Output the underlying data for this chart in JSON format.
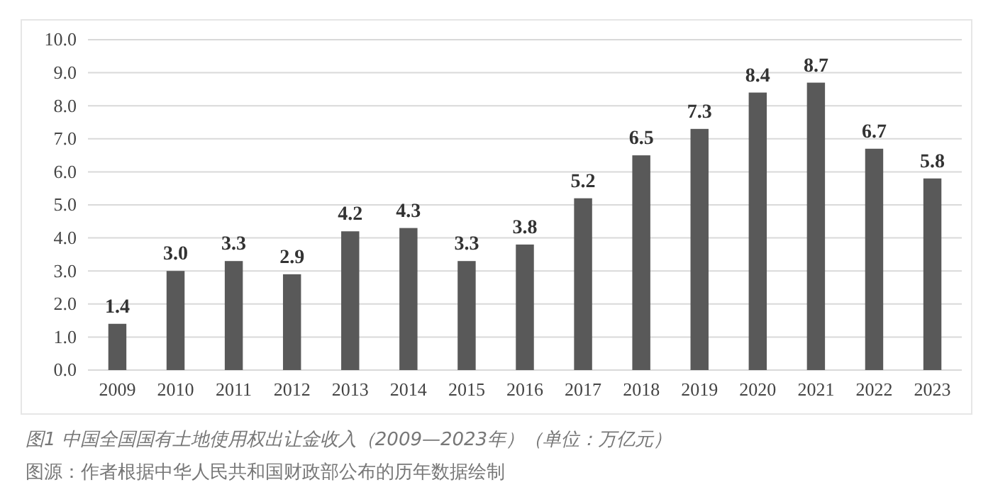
{
  "chart_data": {
    "type": "bar",
    "categories": [
      "2009",
      "2010",
      "2011",
      "2012",
      "2013",
      "2014",
      "2015",
      "2016",
      "2017",
      "2018",
      "2019",
      "2020",
      "2021",
      "2022",
      "2023"
    ],
    "values": [
      1.4,
      3.0,
      3.3,
      2.9,
      4.2,
      4.3,
      3.3,
      3.8,
      5.2,
      6.5,
      7.3,
      8.4,
      8.7,
      6.7,
      5.8
    ],
    "color": "#595959",
    "ylim": [
      0,
      10
    ],
    "yticks": [
      {
        "value": 0,
        "label": "0.0"
      },
      {
        "value": 1,
        "label": "1.0"
      },
      {
        "value": 2,
        "label": "2.0"
      },
      {
        "value": 3,
        "label": "3.0"
      },
      {
        "value": 4,
        "label": "4.0"
      },
      {
        "value": 5,
        "label": "5.0"
      },
      {
        "value": 6,
        "label": "6.0"
      },
      {
        "value": 7,
        "label": "7.0"
      },
      {
        "value": 8,
        "label": "8.0"
      },
      {
        "value": 9,
        "label": "9.0"
      },
      {
        "value": 10,
        "label": "10.0"
      }
    ],
    "grid": "y",
    "value_labels": [
      "1.4",
      "3.0",
      "3.3",
      "2.9",
      "4.2",
      "4.3",
      "3.3",
      "3.8",
      "5.2",
      "6.5",
      "7.3",
      "8.4",
      "8.7",
      "6.7",
      "5.8"
    ],
    "annotations": [
      "图1  中国全国国有土地使用权出让金收入（2009—2023年）（单位：万亿元）",
      "图源：作者根据中华人民共和国财政部公布的历年数据绘制"
    ]
  }
}
